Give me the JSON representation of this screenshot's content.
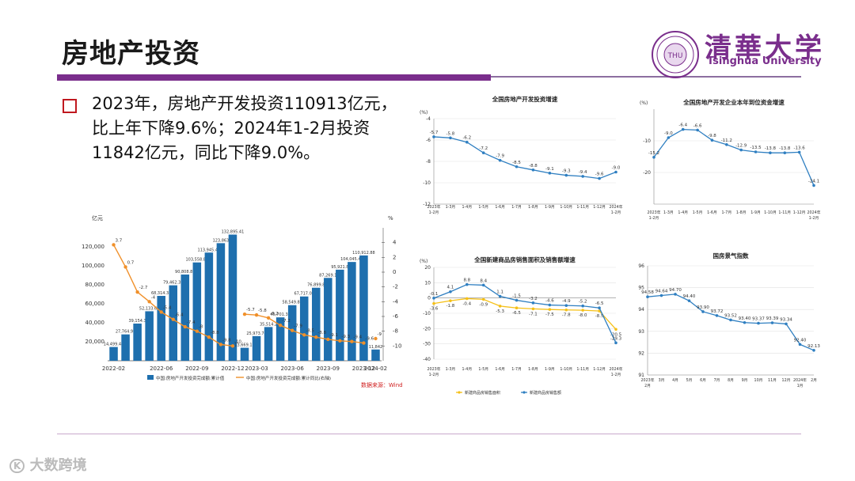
{
  "header": {
    "title": "房地产投资"
  },
  "bullet": {
    "text": "2023年，房地产开发投资110913亿元，比上年下降9.6%；2024年1-2月投资11842亿元，同比下降9.0%。"
  },
  "logo": {
    "cn": "清華大学",
    "en": "Tsinghua University",
    "seal_text": "THU"
  },
  "watermark": {
    "brand": "大数跨境",
    "mark": "K"
  },
  "colors": {
    "purple": "#7a2e8c",
    "bar_blue": "#1e6fae",
    "line_orange": "#f0902a",
    "line_blue": "#2f7fc1",
    "line_yellow": "#f5c017",
    "bullet_red": "#c0181f"
  },
  "chart_data": [
    {
      "type": "bar",
      "id": "investment-cumulative",
      "yunit_left": "亿元",
      "yunit_right": "%",
      "categories": [
        "2022-02",
        "2022-03",
        "2022-04",
        "2022-05",
        "2022-06",
        "2022-07",
        "2022-08",
        "2022-09",
        "2022-10",
        "2022-11",
        "2022-12",
        "2023-02",
        "2023-03",
        "2023-04",
        "2023-05",
        "2023-06",
        "2023-07",
        "2023-08",
        "2023-09",
        "2023-10",
        "2023-11",
        "2023-12",
        "2024-02"
      ],
      "xtick_labels": [
        "2022-02",
        "2022-06",
        "2022-09",
        "2022-12",
        "2023-03",
        "2023-06",
        "2023-09",
        "2023-12",
        "2024-02"
      ],
      "xtick_index": [
        0,
        4,
        7,
        10,
        12,
        15,
        18,
        21,
        22
      ],
      "values": [
        14499.48,
        27764.99,
        39154.3,
        52133.61,
        68314.38,
        79462.37,
        90808.85,
        103558.85,
        113945.46,
        123863,
        132895.41,
        13669.17,
        25973.74,
        35514.2,
        45701.37,
        58549.86,
        67717.03,
        76899.8,
        87269.1,
        95921.8,
        104045.48,
        110912.88,
        11842
      ],
      "value_labels": [
        "14,499.48",
        "27,764.99",
        "39,154.3",
        "52,133.61",
        "68,314.38",
        "79,462.37",
        "90,808.85",
        "103,558.85",
        "113,945.46",
        "123,863",
        "132,895.41",
        "13,669.17",
        "25,973.74",
        "35,514.2",
        "45,701.37",
        "58,549.86",
        "67,717.03",
        "76,899.8",
        "87,269.1",
        "95,921.8",
        "104,045.48",
        "110,912.88",
        "11,842"
      ],
      "growth": [
        3.7,
        0.7,
        -2.7,
        -4,
        -5.4,
        -6.4,
        -7.4,
        -8,
        -8.8,
        -9.8,
        -10,
        -5.7,
        -5.8,
        -6.2,
        -7.2,
        -7.9,
        -8.5,
        -8.8,
        -9.1,
        -9.3,
        -9.4,
        -9.6,
        -9
      ],
      "growth_labels": [
        "3.7",
        "0.7",
        "-2.7",
        "-4",
        "-5.4",
        "-6.4",
        "-7.4",
        "-8",
        "-8.8",
        "-9.8",
        "-10",
        "-5.7",
        "-5.8",
        "-6.2",
        "-7.2",
        "-7.9",
        "-8.5",
        "-8.8",
        "-9.1",
        "-9.3",
        "-9.4",
        "-9.6",
        "-9"
      ],
      "ylim_left": [
        0,
        140000
      ],
      "yticks_left": [
        "20,000",
        "40,000",
        "60,000",
        "80,000",
        "100,000",
        "120,000"
      ],
      "ylim_right": [
        -12,
        6
      ],
      "yticks_right": [
        "4",
        "2",
        "0",
        "-2",
        "-4",
        "-6",
        "-8",
        "-10"
      ],
      "legend": [
        "中国:房地产开发投资完成额:累计值",
        "中国:房地产开发投资完成额:累计同比(右轴)"
      ],
      "source": "数据来源：Wind"
    },
    {
      "type": "line",
      "id": "investment-growth",
      "title": "全国房地产开发投资增速",
      "yunit": "(%)",
      "categories": [
        "2023年1-2月",
        "1-3月",
        "1-4月",
        "1-5月",
        "1-6月",
        "1-7月",
        "1-8月",
        "1-9月",
        "1-10月",
        "1-11月",
        "1-12月",
        "2024年1-2月"
      ],
      "xtick_labels": [
        [
          "2023年",
          "1-2月"
        ],
        [
          "1-3月"
        ],
        [
          "1-4月"
        ],
        [
          "1-5月"
        ],
        [
          "1-6月"
        ],
        [
          "1-7月"
        ],
        [
          "1-8月"
        ],
        [
          "1-9月"
        ],
        [
          "1-10月"
        ],
        [
          "1-11月"
        ],
        [
          "1-12月"
        ],
        [
          "2024年",
          "1-2月"
        ]
      ],
      "values": [
        -5.7,
        -5.8,
        -6.2,
        -7.2,
        -7.9,
        -8.5,
        -8.8,
        -9.1,
        -9.3,
        -9.4,
        -9.6,
        -9.0
      ],
      "labels": [
        "-5.7",
        "-5.8",
        "-6.2",
        "-7.2",
        "-7.9",
        "-8.5",
        "-8.8",
        "-9.1",
        "-9.3",
        "-9.4",
        "-9.6",
        "-9.0"
      ],
      "ylim": [
        -12,
        -4
      ],
      "yticks": [
        "-4",
        "-6",
        "-8",
        "-10",
        "-12"
      ]
    },
    {
      "type": "line",
      "id": "funding-growth",
      "title": "全国房地产开发企业本年到位资金增速",
      "yunit": "(%)",
      "categories": [
        "2023年1-2月",
        "1-3月",
        "1-4月",
        "1-5月",
        "1-6月",
        "1-7月",
        "1-8月",
        "1-9月",
        "1-10月",
        "1-11月",
        "1-12月",
        "2024年1-2月"
      ],
      "xtick_labels": [
        [
          "2023年",
          "1-2月"
        ],
        [
          "1-3月"
        ],
        [
          "1-4月"
        ],
        [
          "1-5月"
        ],
        [
          "1-6月"
        ],
        [
          "1-7月"
        ],
        [
          "1-8月"
        ],
        [
          "1-9月"
        ],
        [
          "1-10月"
        ],
        [
          "1-11月"
        ],
        [
          "1-12月"
        ],
        [
          "2024年",
          "1-2月"
        ]
      ],
      "values": [
        -15.2,
        -9.0,
        -6.4,
        -6.6,
        -9.8,
        -11.2,
        -12.9,
        -13.5,
        -13.8,
        -13.8,
        -13.6,
        -24.1
      ],
      "labels": [
        "-15.2",
        "-9.0",
        "-6.4",
        "-6.6",
        "-9.8",
        "-11.2",
        "-12.9",
        "-13.5",
        "-13.8",
        "-13.8",
        "-13.6",
        "-24.1"
      ],
      "ylim": [
        -30,
        0
      ],
      "yticks": [
        "-10",
        "-20"
      ]
    },
    {
      "type": "line",
      "id": "sales-growth",
      "title": "全国新建商品房销售面积及销售额增速",
      "yunit": "(%)",
      "categories": [
        "2023年1-2月",
        "1-3月",
        "1-4月",
        "1-5月",
        "1-6月",
        "1-7月",
        "1-8月",
        "1-9月",
        "1-10月",
        "1-11月",
        "1-12月",
        "2024年1-2月"
      ],
      "xtick_labels": [
        [
          "2023年",
          "1-2月"
        ],
        [
          "1-3月"
        ],
        [
          "1-4月"
        ],
        [
          "1-5月"
        ],
        [
          "1-6月"
        ],
        [
          "1-7月"
        ],
        [
          "1-8月"
        ],
        [
          "1-9月"
        ],
        [
          "1-10月"
        ],
        [
          "1-11月"
        ],
        [
          "1-12月"
        ],
        [
          "2024年",
          "1-2月"
        ]
      ],
      "series": [
        {
          "name": "新建商品房销售面积",
          "color": "#f5c017",
          "values": [
            -3.6,
            -1.8,
            -0.4,
            -0.9,
            -5.3,
            -6.5,
            -7.1,
            -7.5,
            -7.8,
            -8.0,
            -8.5,
            -20.5
          ],
          "labels": [
            "-3.6",
            "-1.8",
            "-0.4",
            "-0.9",
            "-5.3",
            "-6.5",
            "-7.1",
            "-7.5",
            "-7.8",
            "-8.0",
            "-8.5",
            "-20.5"
          ]
        },
        {
          "name": "新建商品房销售额",
          "color": "#2f7fc1",
          "values": [
            -0.1,
            4.1,
            8.8,
            8.4,
            1.1,
            -1.5,
            -3.2,
            -4.6,
            -4.9,
            -5.2,
            -6.5,
            -29.3
          ],
          "labels": [
            "-0.1",
            "4.1",
            "8.8",
            "8.4",
            "1.1",
            "-1.5",
            "-3.2",
            "-4.6",
            "-4.9",
            "-5.2",
            "-6.5",
            "-29.3"
          ]
        }
      ],
      "ylim": [
        -40,
        20
      ],
      "yticks": [
        "20",
        "10",
        "0",
        "-10",
        "-20",
        "-30",
        "-40"
      ]
    },
    {
      "type": "line",
      "id": "climate-index",
      "title": "国房景气指数",
      "categories": [
        "2023年2月",
        "3月",
        "4月",
        "5月",
        "6月",
        "7月",
        "8月",
        "9月",
        "10月",
        "11月",
        "12月",
        "2024年1月",
        "2月"
      ],
      "xtick_labels": [
        [
          "2023年",
          "2月"
        ],
        [
          "3月"
        ],
        [
          "4月"
        ],
        [
          "5月"
        ],
        [
          "6月"
        ],
        [
          "7月"
        ],
        [
          "8月"
        ],
        [
          "9月"
        ],
        [
          "10月"
        ],
        [
          "11月"
        ],
        [
          "12月"
        ],
        [
          "2024年",
          "1月"
        ],
        [
          "2月"
        ]
      ],
      "values": [
        94.58,
        94.64,
        94.7,
        94.4,
        93.9,
        93.72,
        93.52,
        93.4,
        93.37,
        93.39,
        93.34,
        92.4,
        92.13
      ],
      "labels": [
        "94.58",
        "94.64",
        "94.70",
        "94.40",
        "93.90",
        "93.72",
        "93.52",
        "93.40",
        "93.37",
        "93.39",
        "93.34",
        "92.40",
        "92.13"
      ],
      "ylim": [
        91,
        96
      ],
      "yticks": [
        "96",
        "95",
        "94",
        "93",
        "92",
        "91"
      ]
    }
  ]
}
